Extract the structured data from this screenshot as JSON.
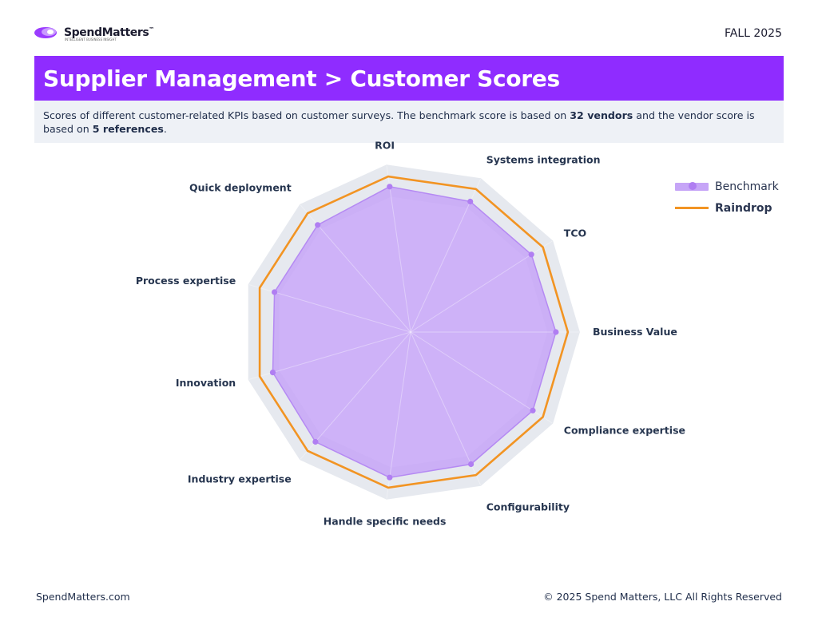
{
  "header": {
    "brand": "SpendMatters",
    "brand_tm": "™",
    "brand_tagline": "INTELLIGENT BUSINESS INSIGHT",
    "season": "FALL 2025"
  },
  "title": "Supplier Management > Customer Scores",
  "description": {
    "part1": "Scores of different customer-related KPIs based on customer surveys. The benchmark score is based on ",
    "vendors": "32 vendors",
    "part2": " and the vendor score is based on ",
    "references": "5 references",
    "part3": "."
  },
  "colors": {
    "title_bar": "#8f2cff",
    "benchmark_fill": "#c6a5f7",
    "benchmark_point": "#b07ef2",
    "vendor_line": "#f29423",
    "band": "#e6e9ef"
  },
  "chart_data": {
    "type": "radar",
    "categories": [
      "Business Value",
      "TCO",
      "Systems integration",
      "ROI",
      "Quick deployment",
      "Process expertise",
      "Innovation",
      "Industry expertise",
      "Handle specific needs",
      "Configurability",
      "Compliance expertise"
    ],
    "series": [
      {
        "name": "Benchmark",
        "values": [
          4.25,
          4.2,
          4.2,
          4.3,
          4.15,
          4.15,
          4.2,
          4.25,
          4.3,
          4.25,
          4.25
        ]
      },
      {
        "name": "Raindrop",
        "values": [
          4.6,
          4.6,
          4.6,
          4.6,
          4.6,
          4.6,
          4.6,
          4.6,
          4.6,
          4.6,
          4.6
        ]
      }
    ],
    "rlim": [
      0,
      5
    ],
    "band_range": [
      4.0,
      4.95
    ],
    "legend_position": "top-right"
  },
  "legend": {
    "benchmark": "Benchmark",
    "vendor": "Raindrop"
  },
  "footer": {
    "site": "SpendMatters.com",
    "copyright": "© 2025 Spend Matters, LLC All Rights Reserved"
  }
}
